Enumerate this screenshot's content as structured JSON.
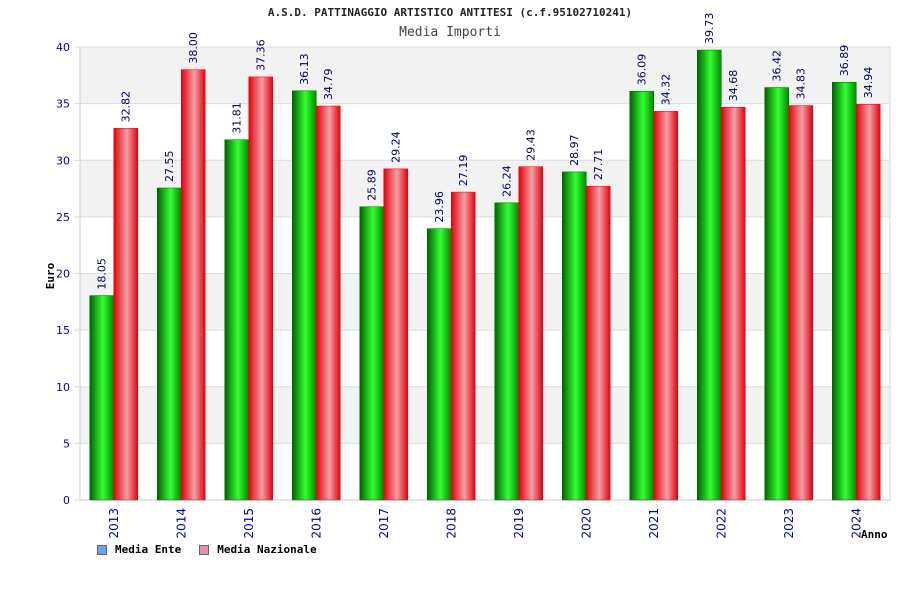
{
  "colors": {
    "ente_swatch": "#6aa3e8",
    "nazionale_swatch": "#e88fb0",
    "ente_dark": "#006400",
    "ente_light": "#33ff33",
    "naz_dark": "#e6000a",
    "naz_light": "#f0a0a8",
    "grid_band": "#f2f2f2",
    "axis_label": "#0000aa",
    "value_label": "#000066"
  },
  "chart_data": {
    "type": "bar",
    "title": "A.S.D. PATTINAGGIO ARTISTICO ANTITESI (c.f.95102710241)",
    "subtitle": "Media Importi",
    "xlabel": "Anno",
    "ylabel": "Euro",
    "ylim": [
      0,
      40
    ],
    "yticks": [
      0,
      5,
      10,
      15,
      20,
      25,
      30,
      35,
      40
    ],
    "categories": [
      "2013",
      "2014",
      "2015",
      "2016",
      "2017",
      "2018",
      "2019",
      "2020",
      "2021",
      "2022",
      "2023",
      "2024"
    ],
    "series": [
      {
        "name": "Media Ente",
        "values": [
          18.05,
          27.55,
          31.81,
          36.13,
          25.89,
          23.96,
          26.24,
          28.97,
          36.09,
          39.73,
          36.42,
          36.89
        ],
        "labels": [
          "18.05",
          "27.55",
          "31.81",
          "36.13",
          "25.89",
          "23.96",
          "26.24",
          "28.97",
          "36.09",
          "39.73",
          "36.42",
          "36.89"
        ]
      },
      {
        "name": "Media Nazionale",
        "values": [
          32.82,
          38.0,
          37.36,
          34.79,
          29.24,
          27.19,
          29.43,
          27.71,
          34.32,
          34.68,
          34.83,
          34.94
        ],
        "labels": [
          "32.82",
          "38.00",
          "37.36",
          "34.79",
          "29.24",
          "27.19",
          "29.43",
          "27.71",
          "34.32",
          "34.68",
          "34.83",
          "34.94"
        ]
      }
    ],
    "legend_position": "bottom-left",
    "grid": true
  }
}
